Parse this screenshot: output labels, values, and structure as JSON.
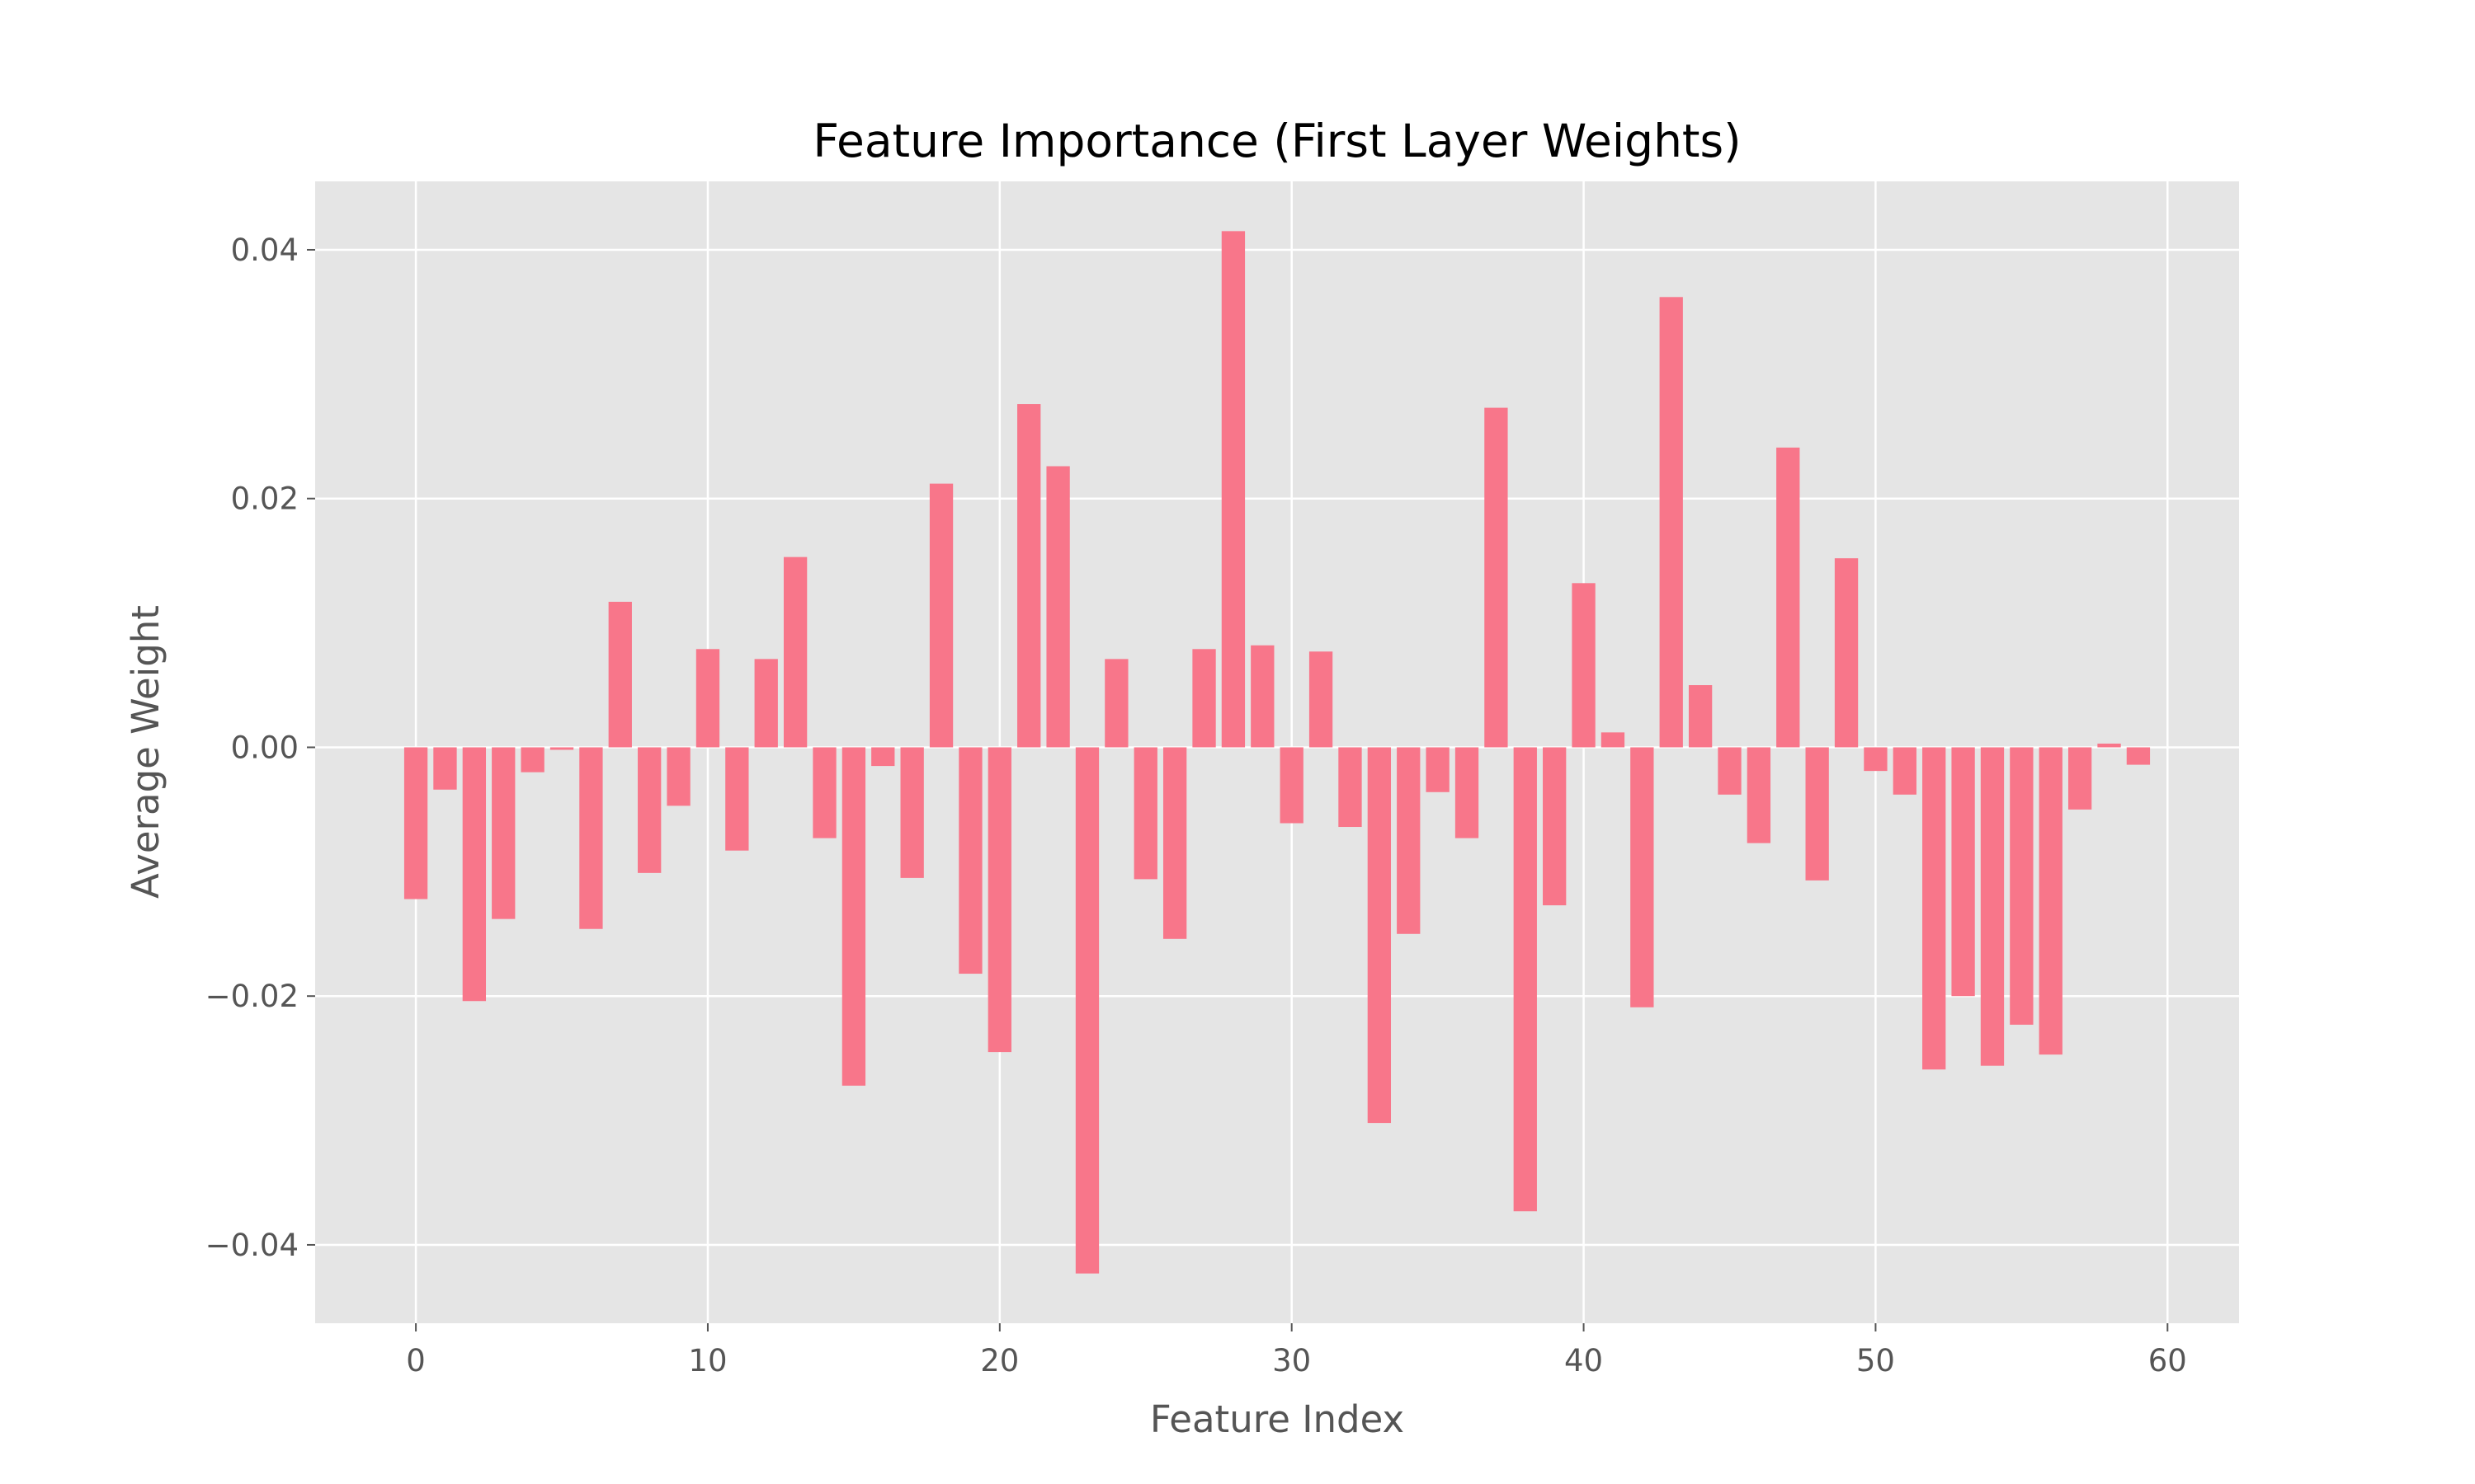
{
  "chart_data": {
    "type": "bar",
    "title": "Feature Importance (First Layer Weights)",
    "xlabel": "Feature Index",
    "ylabel": "Average Weight",
    "x": [
      0,
      1,
      2,
      3,
      4,
      5,
      6,
      7,
      8,
      9,
      10,
      11,
      12,
      13,
      14,
      15,
      16,
      17,
      18,
      19,
      20,
      21,
      22,
      23,
      24,
      25,
      26,
      27,
      28,
      29,
      30,
      31,
      32,
      33,
      34,
      35,
      36,
      37,
      38,
      39,
      40,
      41,
      42,
      43,
      44,
      45,
      46,
      47,
      48,
      49,
      50,
      51,
      52,
      53,
      54,
      55,
      56,
      57,
      58,
      59
    ],
    "values": [
      -0.0122,
      -0.0034,
      -0.0204,
      -0.0138,
      -0.002,
      -0.0002,
      -0.0146,
      0.0117,
      -0.0101,
      -0.0047,
      0.0079,
      -0.0083,
      0.0071,
      0.0153,
      -0.0073,
      -0.0272,
      -0.0015,
      -0.0105,
      0.0212,
      -0.0182,
      -0.0245,
      0.0276,
      0.0226,
      -0.0423,
      0.0071,
      -0.0106,
      -0.0154,
      0.0079,
      0.0415,
      0.0082,
      -0.0061,
      0.0077,
      -0.0064,
      -0.0302,
      -0.015,
      -0.0036,
      -0.0073,
      0.0273,
      -0.0373,
      -0.0127,
      0.0132,
      0.0012,
      -0.0209,
      0.0362,
      0.005,
      -0.0038,
      -0.0077,
      0.0241,
      -0.0107,
      0.0152,
      -0.0019,
      -0.0038,
      -0.0259,
      -0.02,
      -0.0256,
      -0.0223,
      -0.0247,
      -0.005,
      0.0003,
      -0.0014
    ],
    "xlim": [
      -3.45,
      62.45
    ],
    "ylim": [
      -0.0463,
      0.0455
    ],
    "xticks": [
      0,
      10,
      20,
      30,
      40,
      50,
      60
    ],
    "xtick_labels": [
      "0",
      "10",
      "20",
      "30",
      "40",
      "50",
      "60"
    ],
    "yticks": [
      -0.04,
      -0.02,
      0.0,
      0.02,
      0.04
    ],
    "ytick_labels": [
      "−0.04",
      "−0.02",
      "0.00",
      "0.02",
      "0.04"
    ],
    "grid": true,
    "colors": {
      "bar": "#f8768a",
      "plot_background": "#e5e5e5",
      "grid": "#ffffff"
    }
  }
}
